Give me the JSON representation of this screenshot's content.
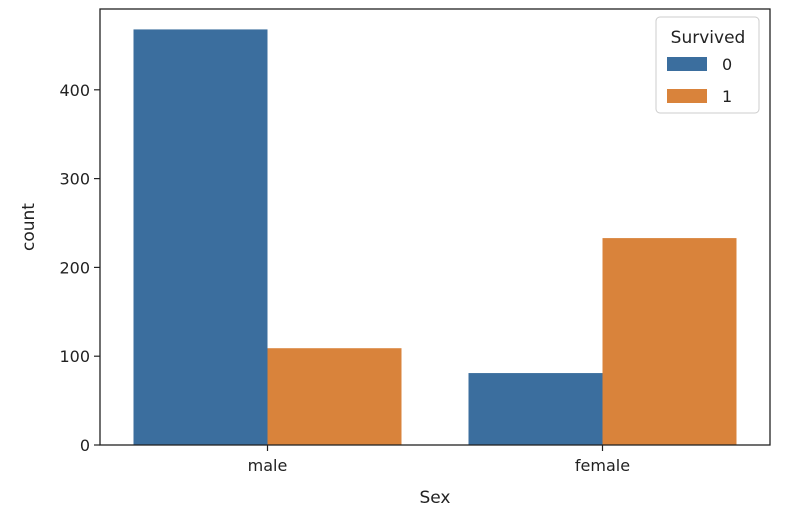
{
  "chart_data": {
    "type": "bar",
    "categories": [
      "male",
      "female"
    ],
    "series": [
      {
        "name": "0",
        "values": [
          468,
          81
        ],
        "color": "#3b6e9e"
      },
      {
        "name": "1",
        "values": [
          109,
          233
        ],
        "color": "#d9833b"
      }
    ],
    "xlabel": "Sex",
    "ylabel": "count",
    "ylim": [
      0,
      491
    ],
    "yticks": [
      0,
      100,
      200,
      300,
      400
    ],
    "legend": {
      "title": "Survived",
      "placement": "top-right"
    },
    "grid": false
  }
}
